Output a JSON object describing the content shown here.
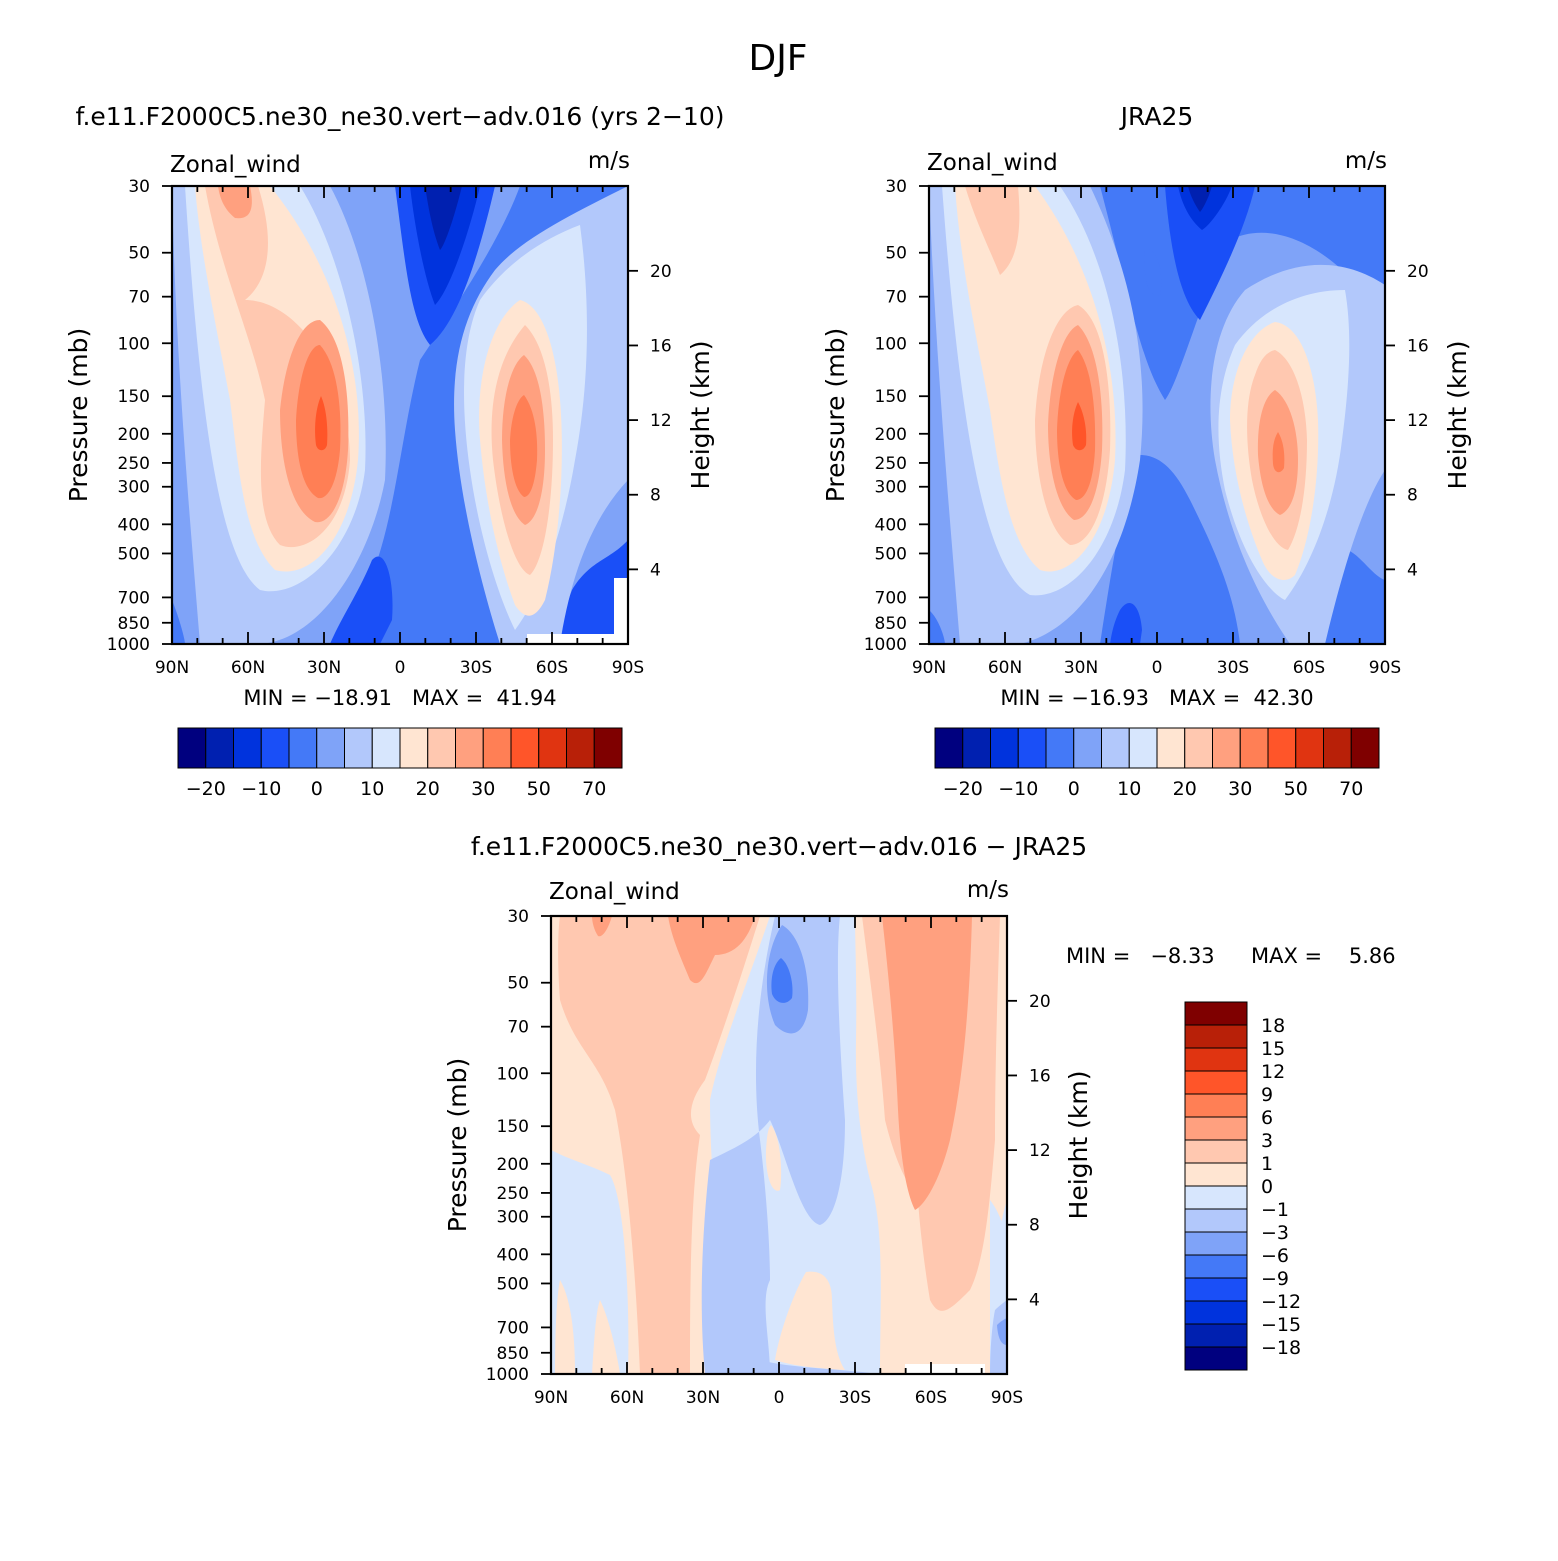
{
  "figure": {
    "suptitle": "DJF",
    "colors": {
      "blue": [
        "#00007f",
        "#0020b0",
        "#0033dd",
        "#1a4ff7",
        "#4479f7",
        "#7fa3f8",
        "#b2c8fb",
        "#d7e6fd"
      ],
      "red": [
        "#ffe5d2",
        "#ffc8b0",
        "#ffa07f",
        "#ff7f55",
        "#ff5529",
        "#e03411",
        "#b82008",
        "#7f0000"
      ]
    }
  },
  "chart_data": [
    {
      "type": "contour",
      "title": "f.e11.F2000C5.ne30_ne30.vert−adv.016 (yrs 2−10)",
      "variable": "Zonal_wind",
      "units": "m/s",
      "ylabel": "Pressure (mb)",
      "ylabel2": "Height (km)",
      "x_ticks": [
        "90N",
        "60N",
        "30N",
        "0",
        "30S",
        "60S",
        "90S"
      ],
      "y_ticks": [
        "30",
        "50",
        "70",
        "100",
        "150",
        "200",
        "250",
        "300",
        "400",
        "500",
        "700",
        "850",
        "1000"
      ],
      "y2_ticks": [
        "20",
        "16",
        "12",
        "8",
        "4"
      ],
      "stats": "MIN = −18.91   MAX =  41.94",
      "min": -18.91,
      "max": 41.94,
      "levels": [
        -25,
        -20,
        -15,
        -10,
        -5,
        0,
        5,
        10,
        15,
        20,
        25,
        30,
        40,
        50,
        60,
        70
      ],
      "colorbar_labels": [
        "−20",
        "−10",
        "0",
        "10",
        "20",
        "30",
        "50",
        "70"
      ],
      "jets": [
        {
          "lat": 31,
          "pressure_mb": 200,
          "value": 41.94
        },
        {
          "lat": -47,
          "pressure_mb": 220,
          "value": 30
        }
      ],
      "minimum_region": {
        "lat": -12,
        "pressure_mb": 35,
        "value": -18.91
      }
    },
    {
      "type": "contour",
      "title": "JRA25",
      "variable": "Zonal_wind",
      "units": "m/s",
      "ylabel": "Pressure (mb)",
      "ylabel2": "Height (km)",
      "x_ticks": [
        "90N",
        "60N",
        "30N",
        "0",
        "30S",
        "60S",
        "90S"
      ],
      "y_ticks": [
        "30",
        "50",
        "70",
        "100",
        "150",
        "200",
        "250",
        "300",
        "400",
        "500",
        "700",
        "850",
        "1000"
      ],
      "y2_ticks": [
        "20",
        "16",
        "12",
        "8",
        "4"
      ],
      "stats": "MIN = −16.93   MAX =  42.30",
      "min": -16.93,
      "max": 42.3,
      "levels": [
        -25,
        -20,
        -15,
        -10,
        -5,
        0,
        5,
        10,
        15,
        20,
        25,
        30,
        40,
        50,
        60,
        70
      ],
      "colorbar_labels": [
        "−20",
        "−10",
        "0",
        "10",
        "20",
        "30",
        "50",
        "70"
      ],
      "jets": [
        {
          "lat": 31,
          "pressure_mb": 200,
          "value": 42.3
        },
        {
          "lat": -47,
          "pressure_mb": 250,
          "value": 28
        }
      ],
      "minimum_region": {
        "lat": -14,
        "pressure_mb": 35,
        "value": -16.93
      }
    },
    {
      "type": "contour",
      "title": "f.e11.F2000C5.ne30_ne30.vert−adv.016 − JRA25",
      "variable": "Zonal_wind",
      "units": "m/s",
      "ylabel": "Pressure (mb)",
      "ylabel2": "Height (km)",
      "x_ticks": [
        "90N",
        "60N",
        "30N",
        "0",
        "30S",
        "60S",
        "90S"
      ],
      "y_ticks": [
        "30",
        "50",
        "70",
        "100",
        "150",
        "200",
        "250",
        "300",
        "400",
        "500",
        "700",
        "850",
        "1000"
      ],
      "y2_ticks": [
        "20",
        "16",
        "12",
        "8",
        "4"
      ],
      "stats_min": "MIN =   −8.33",
      "stats_max": "MAX =    5.86",
      "min": -8.33,
      "max": 5.86,
      "levels": [
        -21,
        -18,
        -15,
        -12,
        -9,
        -6,
        -3,
        -1,
        0,
        1,
        3,
        6,
        9,
        12,
        15,
        18,
        21
      ],
      "colorbar_labels": [
        "18",
        "15",
        "12",
        "9",
        "6",
        "3",
        "1",
        "0",
        "−1",
        "−3",
        "−6",
        "−9",
        "−12",
        "−15",
        "−18"
      ]
    }
  ]
}
